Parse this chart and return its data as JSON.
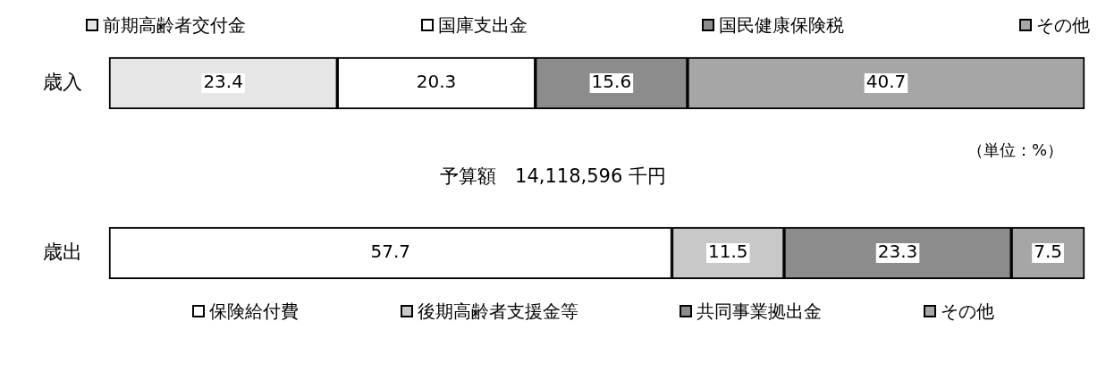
{
  "chart_data": [
    {
      "type": "bar",
      "orientation": "horizontal",
      "stacked": true,
      "categories": [
        "歳入"
      ],
      "data_labels": true,
      "legend": "top",
      "annotations": [
        "（単位：%）",
        "予算額　14,118,596 千円"
      ],
      "series": [
        {
          "name": "前期高齢者交付金",
          "color": "#e6e6e6",
          "values": [
            23.4
          ]
        },
        {
          "name": "国庫支出金",
          "color": "#ffffff",
          "values": [
            20.3
          ]
        },
        {
          "name": "国民健康保険税",
          "color": "#8c8c8c",
          "values": [
            15.6
          ]
        },
        {
          "name": "その他",
          "color": "#a6a6a6",
          "values": [
            40.7
          ]
        }
      ]
    },
    {
      "type": "bar",
      "orientation": "horizontal",
      "stacked": true,
      "categories": [
        "歳出"
      ],
      "data_labels": true,
      "legend": "bottom",
      "series": [
        {
          "name": "保険給付費",
          "color": "#ffffff",
          "values": [
            57.7
          ]
        },
        {
          "name": "後期高齢者支援金等",
          "color": "#c8c8c8",
          "values": [
            11.5
          ]
        },
        {
          "name": "共同事業拠出金",
          "color": "#8c8c8c",
          "values": [
            23.3
          ]
        },
        {
          "name": "その他",
          "color": "#a6a6a6",
          "values": [
            7.5
          ]
        }
      ]
    }
  ]
}
